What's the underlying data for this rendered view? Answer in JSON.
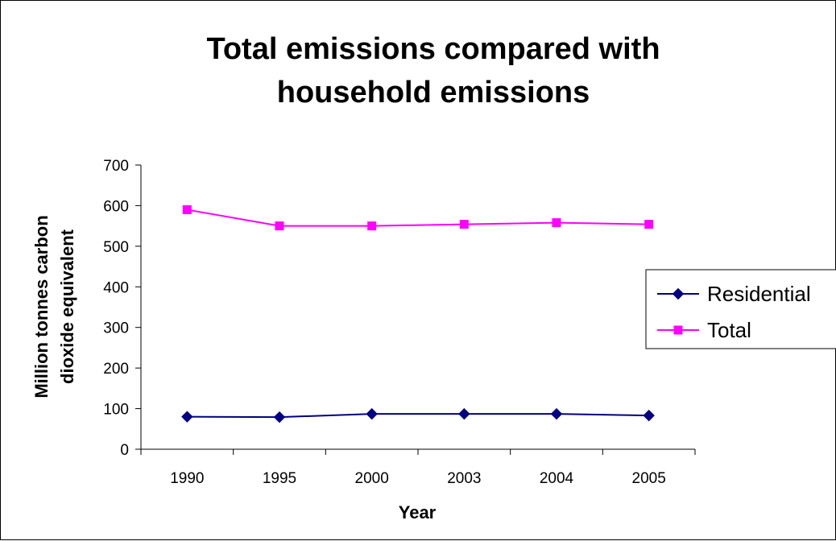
{
  "chart_data": {
    "type": "line",
    "title_lines": [
      "Total emissions compared with",
      "household emissions"
    ],
    "xlabel": "Year",
    "ylabel_lines": [
      "Million tonnes carbon",
      "dioxide equivalent"
    ],
    "categories": [
      "1990",
      "1995",
      "2000",
      "2003",
      "2004",
      "2005"
    ],
    "ylim": [
      0,
      700
    ],
    "yticks": [
      0,
      100,
      200,
      300,
      400,
      500,
      600,
      700
    ],
    "grid": false,
    "legend_position": "right",
    "series": [
      {
        "name": "Residential",
        "values": [
          80,
          79,
          87,
          87,
          87,
          83
        ],
        "color": "#000080",
        "marker": "diamond"
      },
      {
        "name": "Total",
        "values": [
          590,
          550,
          550,
          554,
          558,
          554
        ],
        "color": "#FF00FF",
        "marker": "square"
      }
    ]
  }
}
